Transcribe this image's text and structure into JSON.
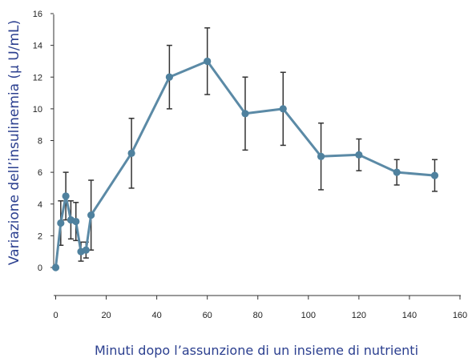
{
  "chart_data": {
    "type": "line",
    "xlabel": "Minuti dopo l’assunzione di un insieme di nutrienti",
    "ylabel": "Variazione dell’insulinemia (µ U/mL)",
    "xlim": [
      0,
      160
    ],
    "ylim": [
      0,
      16
    ],
    "x_ticks": [
      0,
      20,
      40,
      60,
      80,
      100,
      120,
      140,
      160
    ],
    "y_ticks": [
      0,
      2,
      4,
      6,
      8,
      10,
      12,
      14,
      16
    ],
    "grid": false,
    "colors": {
      "line": "#5b8aa6",
      "marker": "#4f819e",
      "error_bar": "#333333",
      "axis": "#333333"
    },
    "series": [
      {
        "x": [
          0,
          2,
          4,
          6,
          8,
          10,
          12,
          14,
          30,
          45,
          60,
          75,
          90,
          105,
          120,
          135,
          150
        ],
        "y": [
          0,
          2.8,
          4.5,
          3.0,
          2.9,
          1.0,
          1.1,
          3.3,
          7.2,
          12.0,
          13.0,
          9.7,
          10.0,
          7.0,
          7.1,
          6.0,
          5.8
        ],
        "error": [
          0,
          1.4,
          1.5,
          1.2,
          1.2,
          0.6,
          0.5,
          2.2,
          2.2,
          2.0,
          2.1,
          2.3,
          2.3,
          2.1,
          1.0,
          0.8,
          1.0
        ]
      }
    ]
  }
}
